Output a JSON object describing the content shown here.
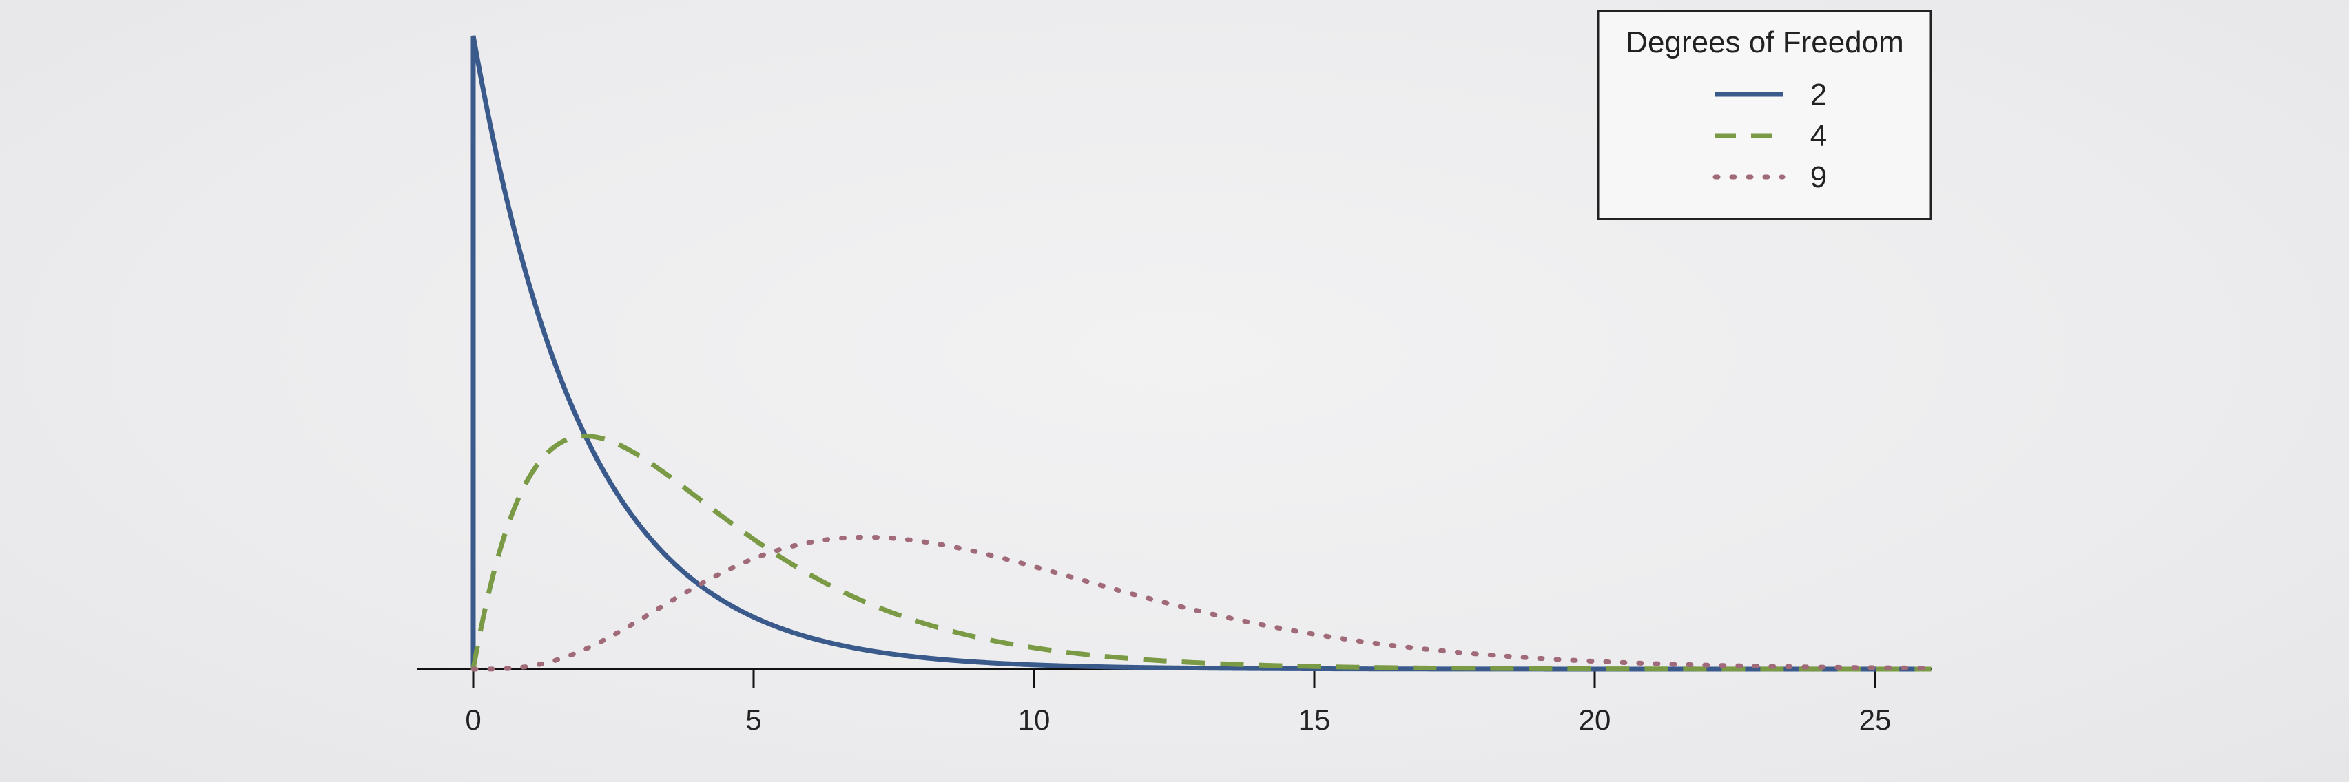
{
  "chart_data": {
    "type": "line",
    "title": "",
    "xlabel": "",
    "ylabel": "",
    "xlim": [
      0,
      26
    ],
    "ylim": [
      0,
      0.5
    ],
    "xticks": [
      "0",
      "5",
      "10",
      "15",
      "20",
      "25"
    ],
    "grid": false,
    "legend": {
      "title": "Degrees of Freedom",
      "placement": "top-right"
    },
    "series": [
      {
        "name": "2",
        "df": 2,
        "style": "solid",
        "color": "#3a5a8c"
      },
      {
        "name": "4",
        "df": 4,
        "style": "dashed",
        "color": "#7a9a45"
      },
      {
        "name": "9",
        "df": 9,
        "style": "dotted",
        "color": "#a06a78"
      }
    ]
  }
}
